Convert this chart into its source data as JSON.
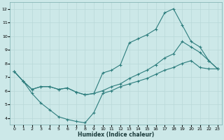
{
  "xlabel": "Humidex (Indice chaleur)",
  "bg_color": "#cce8e8",
  "line_color": "#2d7d7d",
  "grid_color": "#b8d8d8",
  "xlim": [
    -0.5,
    23.5
  ],
  "ylim": [
    3.5,
    12.5
  ],
  "xticks": [
    0,
    1,
    2,
    3,
    4,
    5,
    6,
    7,
    8,
    9,
    10,
    11,
    12,
    13,
    14,
    15,
    16,
    17,
    18,
    19,
    20,
    21,
    22,
    23
  ],
  "yticks": [
    4,
    5,
    6,
    7,
    8,
    9,
    10,
    11,
    12
  ],
  "line1_x": [
    0,
    1,
    2,
    3,
    4,
    5,
    6,
    7,
    8,
    9,
    10,
    11,
    12,
    13,
    14,
    15,
    16,
    17,
    18,
    19,
    20,
    21,
    22,
    23
  ],
  "line1_y": [
    7.4,
    6.7,
    5.8,
    5.1,
    4.6,
    4.1,
    3.9,
    3.75,
    3.65,
    4.4,
    5.8,
    6.0,
    6.3,
    6.5,
    6.7,
    6.9,
    7.2,
    7.5,
    7.7,
    8.0,
    8.2,
    7.7,
    7.6,
    7.6
  ],
  "line2_x": [
    0,
    1,
    2,
    3,
    4,
    5,
    6,
    7,
    8,
    9,
    10,
    11,
    12,
    13,
    14,
    15,
    16,
    17,
    18,
    19,
    20,
    21,
    22,
    23
  ],
  "line2_y": [
    7.4,
    6.7,
    6.1,
    6.3,
    6.3,
    6.1,
    6.2,
    5.9,
    5.7,
    5.8,
    7.3,
    7.5,
    7.9,
    9.5,
    9.8,
    10.1,
    10.5,
    11.7,
    12.0,
    10.8,
    9.6,
    9.2,
    8.2,
    7.6
  ],
  "line3_x": [
    0,
    1,
    2,
    3,
    4,
    5,
    6,
    7,
    8,
    9,
    10,
    11,
    12,
    13,
    14,
    15,
    16,
    17,
    18,
    19,
    20,
    21,
    22,
    23
  ],
  "line3_y": [
    7.4,
    6.7,
    6.1,
    6.3,
    6.3,
    6.1,
    6.2,
    5.9,
    5.7,
    5.8,
    6.0,
    6.3,
    6.5,
    6.9,
    7.2,
    7.5,
    7.9,
    8.4,
    8.7,
    9.6,
    9.2,
    8.8,
    8.2,
    7.6
  ]
}
